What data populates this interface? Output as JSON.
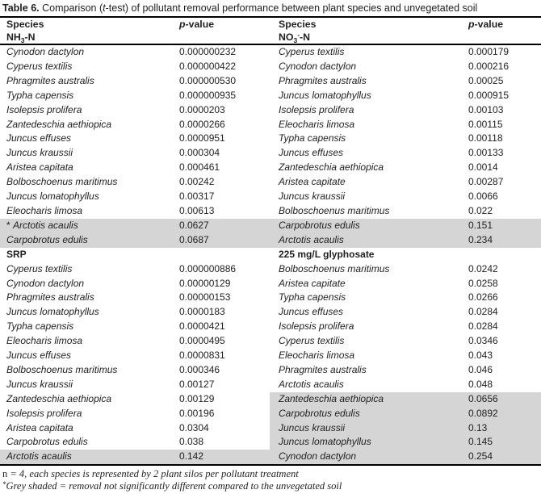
{
  "colors": {
    "grey_shade": "#d5d5d5",
    "rule": "#000000",
    "text": "#1f1f1f"
  },
  "caption": {
    "label": "Table 6.",
    "pre": " Comparison (",
    "italic_t": "t",
    "post": "-test) of pollutant removal performance between plant species and unvegetated soil"
  },
  "header": {
    "species": "Species",
    "p_italic": "p",
    "p_suffix": "-value",
    "sub_left": {
      "pre": "NH",
      "sub": "3",
      "post": "-N"
    },
    "sub_right": {
      "pre": "NO",
      "sub": "3",
      "sup": "-",
      "post": "-N"
    }
  },
  "rows": [
    {
      "l_species": "Cynodon dactylon",
      "l_value": "0.000000232",
      "r_species": "Cyperus textilis",
      "r_value": "0.000179"
    },
    {
      "l_species": "Cyperus textilis",
      "l_value": "0.000000422",
      "r_species": "Cynodon dactylon",
      "r_value": "0.000216"
    },
    {
      "l_species": "Phragmites australis",
      "l_value": "0.000000530",
      "r_species": "Phragmites australis",
      "r_value": "0.00025"
    },
    {
      "l_species": "Typha capensis",
      "l_value": "0.000000935",
      "r_species": "Juncus lomatophyllus",
      "r_value": "0.000915"
    },
    {
      "l_species": "Isolepsis prolifera",
      "l_value": "0.0000203",
      "r_species": "Isolepsis prolifera",
      "r_value": "0.00103"
    },
    {
      "l_species": "Zantedeschia aethiopica",
      "l_value": "0.0000266",
      "r_species": "Eleocharis limosa",
      "r_value": "0.00115"
    },
    {
      "l_species": "Juncus effuses",
      "l_value": "0.0000951",
      "r_species": "Typha capensis",
      "r_value": "0.00118"
    },
    {
      "l_species": "Juncus kraussii",
      "l_value": "0.000304",
      "r_species": "Juncus effuses",
      "r_value": "0.00133"
    },
    {
      "l_species": "Aristea capitata",
      "l_value": "0.000461",
      "r_species": "Zantedeschia aethiopica",
      "r_value": "0.0014"
    },
    {
      "l_species": "Bolboschoenus maritimus",
      "l_value": "0.00242",
      "r_species": "Aristea capitate",
      "r_value": "0.00287"
    },
    {
      "l_species": "Juncus lomatophyllus",
      "l_value": "0.00317",
      "r_species": "Juncus kraussii",
      "r_value": "0.0066"
    },
    {
      "l_species": "Eleocharis limosa",
      "l_value": "0.00613",
      "r_species": "Bolboschoenus maritimus",
      "r_value": "0.022"
    },
    {
      "l_marker": "* ",
      "l_species": "Arctotis acaulis",
      "l_value": "0.0627",
      "r_species": "Carpobrotus edulis",
      "r_value": "0.151",
      "l_shaded": true,
      "r_shaded": true
    },
    {
      "l_species": "Carpobrotus edulis",
      "l_value": "0.0687",
      "r_species": "Arctotis acaulis",
      "r_value": "0.234",
      "l_shaded": true,
      "r_shaded": true
    },
    {
      "section": true,
      "l_species": "SRP",
      "l_value": "",
      "r_species": "225 mg/L glyphosate",
      "r_value": ""
    },
    {
      "l_species": "Cyperus textilis",
      "l_value": "0.000000886",
      "r_species": "Bolboschoenus maritimus",
      "r_value": "0.0242"
    },
    {
      "l_species": "Cynodon dactylon",
      "l_value": "0.00000129",
      "r_species": "Aristea capitate",
      "r_value": "0.0258"
    },
    {
      "l_species": "Phragmites australis",
      "l_value": "0.00000153",
      "r_species": "Typha capensis",
      "r_value": "0.0266"
    },
    {
      "l_species": "Juncus lomatophyllus",
      "l_value": "0.0000183",
      "r_species": "Juncus effuses",
      "r_value": "0.0284"
    },
    {
      "l_species": "Typha capensis",
      "l_value": "0.0000421",
      "r_species": "Isolepsis prolifera",
      "r_value": "0.0284"
    },
    {
      "l_species": "Eleocharis limosa",
      "l_value": "0.0000495",
      "r_species": "Cyperus textilis",
      "r_value": "0.0346"
    },
    {
      "l_species": "Juncus effuses",
      "l_value": "0.0000831",
      "r_species": "Eleocharis limosa",
      "r_value": "0.043"
    },
    {
      "l_species": "Bolboschoenus maritimus",
      "l_value": "0.000346",
      "r_species": "Phragmites australis",
      "r_value": "0.046"
    },
    {
      "l_species": "Juncus kraussii",
      "l_value": "0.00127",
      "r_species": "Arctotis acaulis",
      "r_value": "0.048"
    },
    {
      "l_species": "Zantedeschia aethiopica",
      "l_value": "0.00129",
      "r_species": "Zantedeschia aethiopica",
      "r_value": "0.0656",
      "r_shaded": true
    },
    {
      "l_species": "Isolepsis prolifera",
      "l_value": "0.00196",
      "r_species": "Carpobrotus edulis",
      "r_value": "0.0892",
      "r_shaded": true
    },
    {
      "l_species": "Aristea capitata",
      "l_value": "0.0304",
      "r_species": "Juncus kraussii",
      "r_value": "0.13",
      "r_shaded": true
    },
    {
      "l_species": "Carpobrotus edulis",
      "l_value": "0.038",
      "r_species": "Juncus lomatophyllus",
      "r_value": "0.145",
      "r_shaded": true
    },
    {
      "l_species": "Arctotis acaulis",
      "l_value": "0.142",
      "r_species": "Cynodon dactylon",
      "r_value": "0.254",
      "l_shaded": true,
      "r_shaded": true
    }
  ],
  "footnotes": {
    "fn1_prefix": "n",
    "fn1_text": " = 4, each species is represented by 2 plant silos per pollutant treatment",
    "fn2_marker": "*",
    "fn2_text": "Grey shaded = removal not significantly different compared to the unvegetated soil"
  }
}
